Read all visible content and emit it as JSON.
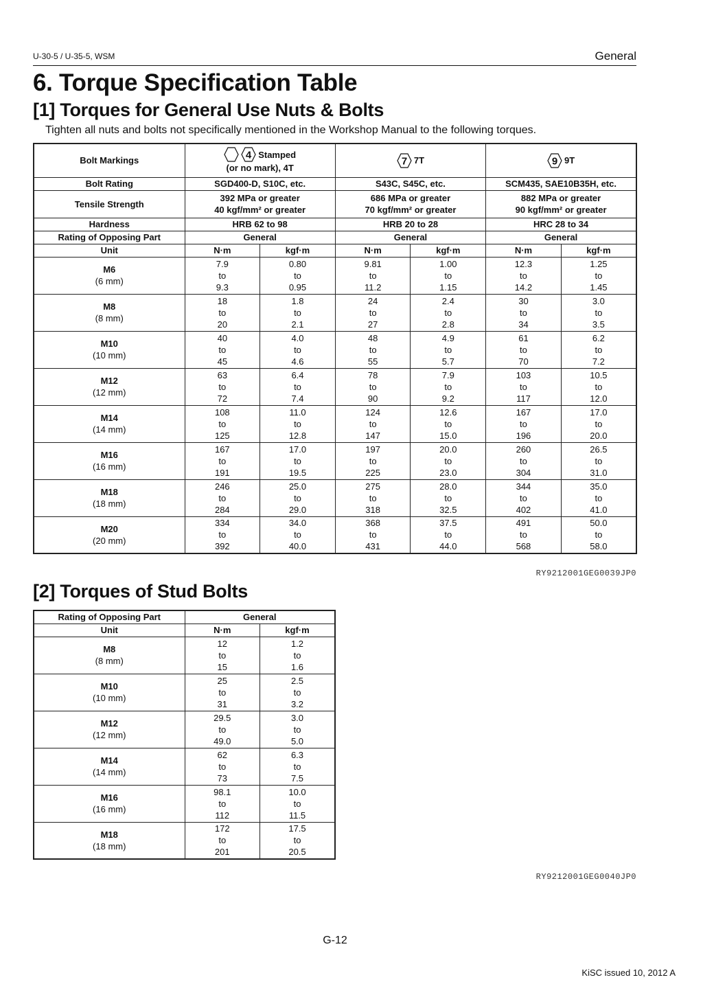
{
  "header": {
    "left": "U-30-5 / U-35-5, WSM",
    "right": "General"
  },
  "title": "6.  Torque Specification Table",
  "section1": {
    "heading": "[1]  Torques for General Use Nuts & Bolts",
    "intro": "Tighten all nuts and bolts not specifically mentioned in the Workshop Manual to the following torques.",
    "table": {
      "bolt_markings_label": "Bolt Markings",
      "markings": [
        {
          "hex_numbers": [
            "",
            "4"
          ],
          "text": "Stamped",
          "line2": "(or no mark), 4T"
        },
        {
          "hex_numbers": [
            "7"
          ],
          "text": "7T"
        },
        {
          "hex_numbers": [
            "9"
          ],
          "text": "9T"
        }
      ],
      "props": [
        {
          "label": "Bolt Rating",
          "values": [
            "SGD400-D, S10C, etc.",
            "S43C, S45C, etc.",
            "SCM435, SAE10B35H, etc."
          ]
        },
        {
          "label": "Tensile Strength",
          "values": [
            [
              "392 MPa or greater",
              "40 kgf/mm² or greater"
            ],
            [
              "686 MPa or greater",
              "70 kgf/mm² or greater"
            ],
            [
              "882 MPa or greater",
              "90 kgf/mm² or greater"
            ]
          ]
        },
        {
          "label": "Hardness",
          "values": [
            "HRB 62 to 98",
            "HRB 20 to 28",
            "HRC 28 to 34"
          ]
        },
        {
          "label": "Rating of Opposing Part",
          "values": [
            "General",
            "General",
            "General"
          ]
        }
      ],
      "unit_label": "Unit",
      "units": [
        "N·m",
        "kgf·m",
        "N·m",
        "kgf·m",
        "N·m",
        "kgf·m"
      ],
      "to": "to",
      "rows": [
        {
          "size": "M6",
          "mm": "(6 mm)",
          "ranges": [
            [
              "7.9",
              "9.3"
            ],
            [
              "0.80",
              "0.95"
            ],
            [
              "9.81",
              "11.2"
            ],
            [
              "1.00",
              "1.15"
            ],
            [
              "12.3",
              "14.2"
            ],
            [
              "1.25",
              "1.45"
            ]
          ]
        },
        {
          "size": "M8",
          "mm": "(8 mm)",
          "ranges": [
            [
              "18",
              "20"
            ],
            [
              "1.8",
              "2.1"
            ],
            [
              "24",
              "27"
            ],
            [
              "2.4",
              "2.8"
            ],
            [
              "30",
              "34"
            ],
            [
              "3.0",
              "3.5"
            ]
          ]
        },
        {
          "size": "M10",
          "mm": "(10 mm)",
          "ranges": [
            [
              "40",
              "45"
            ],
            [
              "4.0",
              "4.6"
            ],
            [
              "48",
              "55"
            ],
            [
              "4.9",
              "5.7"
            ],
            [
              "61",
              "70"
            ],
            [
              "6.2",
              "7.2"
            ]
          ]
        },
        {
          "size": "M12",
          "mm": "(12 mm)",
          "ranges": [
            [
              "63",
              "72"
            ],
            [
              "6.4",
              "7.4"
            ],
            [
              "78",
              "90"
            ],
            [
              "7.9",
              "9.2"
            ],
            [
              "103",
              "117"
            ],
            [
              "10.5",
              "12.0"
            ]
          ]
        },
        {
          "size": "M14",
          "mm": "(14 mm)",
          "ranges": [
            [
              "108",
              "125"
            ],
            [
              "11.0",
              "12.8"
            ],
            [
              "124",
              "147"
            ],
            [
              "12.6",
              "15.0"
            ],
            [
              "167",
              "196"
            ],
            [
              "17.0",
              "20.0"
            ]
          ]
        },
        {
          "size": "M16",
          "mm": "(16 mm)",
          "ranges": [
            [
              "167",
              "191"
            ],
            [
              "17.0",
              "19.5"
            ],
            [
              "197",
              "225"
            ],
            [
              "20.0",
              "23.0"
            ],
            [
              "260",
              "304"
            ],
            [
              "26.5",
              "31.0"
            ]
          ]
        },
        {
          "size": "M18",
          "mm": "(18 mm)",
          "ranges": [
            [
              "246",
              "284"
            ],
            [
              "25.0",
              "29.0"
            ],
            [
              "275",
              "318"
            ],
            [
              "28.0",
              "32.5"
            ],
            [
              "344",
              "402"
            ],
            [
              "35.0",
              "41.0"
            ]
          ]
        },
        {
          "size": "M20",
          "mm": "(20 mm)",
          "ranges": [
            [
              "334",
              "392"
            ],
            [
              "34.0",
              "40.0"
            ],
            [
              "368",
              "431"
            ],
            [
              "37.5",
              "44.0"
            ],
            [
              "491",
              "568"
            ],
            [
              "50.0",
              "58.0"
            ]
          ]
        }
      ]
    },
    "code": "RY9212001GEG0039JP0"
  },
  "section2": {
    "heading": "[2]  Torques of Stud Bolts",
    "table": {
      "opposing_label": "Rating of Opposing Part",
      "opposing_value": "General",
      "unit_label": "Unit",
      "units": [
        "N·m",
        "kgf·m"
      ],
      "to": "to",
      "rows": [
        {
          "size": "M8",
          "mm": "(8 mm)",
          "ranges": [
            [
              "12",
              "15"
            ],
            [
              "1.2",
              "1.6"
            ]
          ]
        },
        {
          "size": "M10",
          "mm": "(10 mm)",
          "ranges": [
            [
              "25",
              "31"
            ],
            [
              "2.5",
              "3.2"
            ]
          ]
        },
        {
          "size": "M12",
          "mm": "(12 mm)",
          "ranges": [
            [
              "29.5",
              "49.0"
            ],
            [
              "3.0",
              "5.0"
            ]
          ]
        },
        {
          "size": "M14",
          "mm": "(14 mm)",
          "ranges": [
            [
              "62",
              "73"
            ],
            [
              "6.3",
              "7.5"
            ]
          ]
        },
        {
          "size": "M16",
          "mm": "(16 mm)",
          "ranges": [
            [
              "98.1",
              "112"
            ],
            [
              "10.0",
              "11.5"
            ]
          ]
        },
        {
          "size": "M18",
          "mm": "(18 mm)",
          "ranges": [
            [
              "172",
              "201"
            ],
            [
              "17.5",
              "20.5"
            ]
          ]
        }
      ]
    },
    "code": "RY9212001GEG0040JP0"
  },
  "footer": {
    "page": "G-12",
    "issued": "KiSC issued 10, 2012 A"
  }
}
